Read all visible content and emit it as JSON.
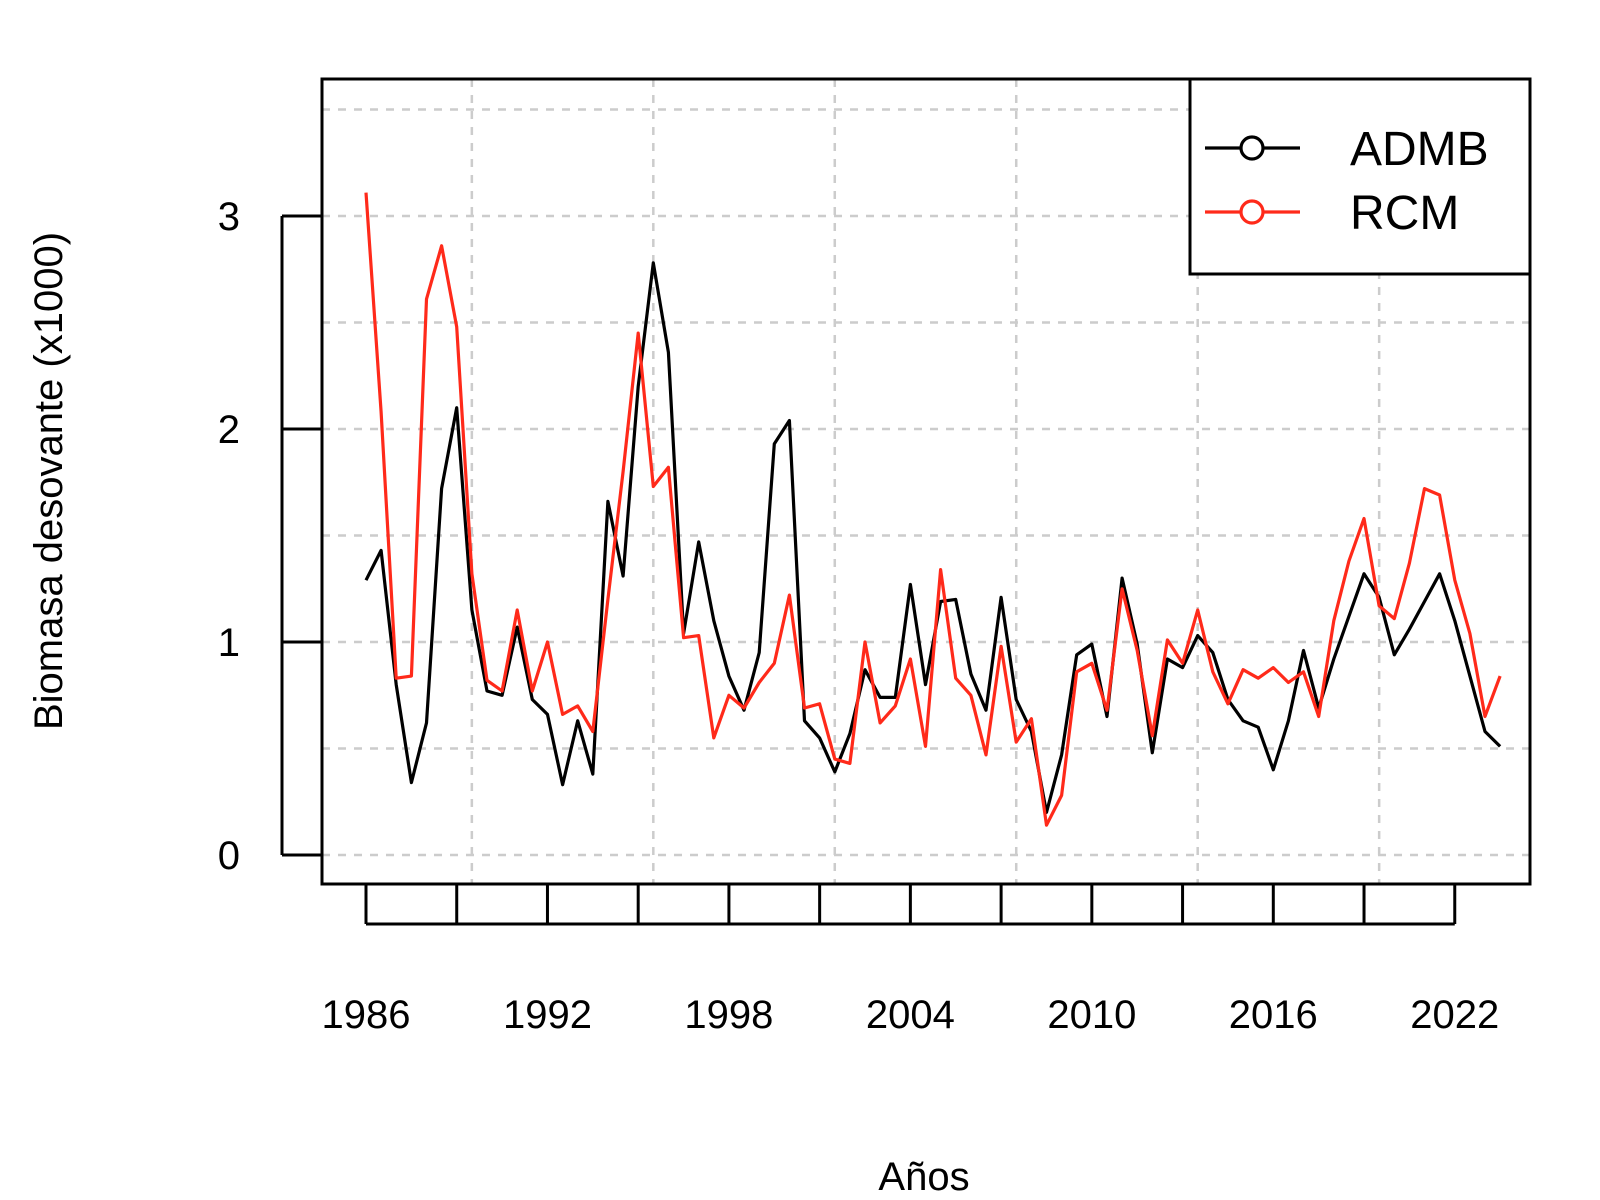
{
  "chart_data": {
    "type": "line",
    "xlabel": "Años",
    "ylabel": "Biomasa desovante (x1000)",
    "xlim": [
      1986,
      2023
    ],
    "ylim": [
      0,
      3.5
    ],
    "grid": true,
    "legend_position": "top-right",
    "x_ticks": [
      "1986",
      "1992",
      "1998",
      "2004",
      "2010",
      "2016",
      "2022"
    ],
    "y_ticks": [
      "0",
      "1",
      "2",
      "3"
    ],
    "x": [
      1986,
      1986.5,
      1987,
      1987.5,
      1988,
      1988.5,
      1989,
      1989.5,
      1990,
      1990.5,
      1991,
      1991.5,
      1992,
      1992.5,
      1993,
      1993.5,
      1994,
      1994.5,
      1995,
      1995.5,
      1996,
      1996.5,
      1997,
      1997.5,
      1998,
      1998.5,
      1999,
      1999.5,
      2000,
      2000.5,
      2001,
      2001.5,
      2002,
      2002.5,
      2003,
      2003.5,
      2004,
      2004.5,
      2005,
      2005.5,
      2006,
      2006.5,
      2007,
      2007.5,
      2008,
      2008.5,
      2009,
      2009.5,
      2010,
      2010.5,
      2011,
      2011.5,
      2012,
      2012.5,
      2013,
      2013.5,
      2014,
      2014.5,
      2015,
      2015.5,
      2016,
      2016.5,
      2017,
      2017.5,
      2018,
      2018.5,
      2019,
      2019.5,
      2020,
      2020.5,
      2021,
      2021.5,
      2022,
      2022.5,
      2023,
      2023.5
    ],
    "series": [
      {
        "name": "ADMB",
        "color": "#000000",
        "values": [
          1.29,
          1.43,
          0.8,
          0.34,
          0.62,
          1.72,
          2.1,
          1.15,
          0.77,
          0.75,
          1.07,
          0.73,
          0.66,
          0.33,
          0.63,
          0.38,
          1.66,
          1.31,
          2.2,
          2.78,
          2.36,
          1.04,
          1.47,
          1.1,
          0.84,
          0.68,
          0.95,
          1.93,
          2.04,
          0.63,
          0.55,
          0.39,
          0.57,
          0.87,
          0.74,
          0.74,
          1.27,
          0.8,
          1.19,
          1.2,
          0.85,
          0.68,
          1.21,
          0.73,
          0.58,
          0.2,
          0.47,
          0.94,
          0.99,
          0.65,
          1.3,
          0.99,
          0.48,
          0.92,
          0.88,
          1.03,
          0.95,
          0.73,
          0.63,
          0.6,
          0.4,
          0.63,
          0.96,
          0.69,
          0.92,
          1.12,
          1.32,
          1.21,
          0.94,
          1.06,
          1.19,
          1.32,
          1.1,
          0.84,
          0.58,
          0.51
        ]
      },
      {
        "name": "RCM",
        "color": "#ff2a1a",
        "values": [
          3.11,
          2.08,
          0.83,
          0.84,
          2.61,
          2.86,
          2.48,
          1.32,
          0.82,
          0.77,
          1.15,
          0.77,
          1.0,
          0.66,
          0.7,
          0.58,
          1.2,
          1.8,
          2.45,
          1.73,
          1.82,
          1.02,
          1.03,
          0.55,
          0.75,
          0.69,
          0.81,
          0.9,
          1.22,
          0.69,
          0.71,
          0.45,
          0.43,
          1.0,
          0.62,
          0.7,
          0.92,
          0.51,
          1.34,
          0.83,
          0.75,
          0.47,
          0.98,
          0.53,
          0.64,
          0.14,
          0.28,
          0.86,
          0.9,
          0.68,
          1.25,
          0.96,
          0.56,
          1.01,
          0.9,
          1.15,
          0.86,
          0.71,
          0.87,
          0.83,
          0.88,
          0.81,
          0.86,
          0.65,
          1.1,
          1.38,
          1.58,
          1.17,
          1.11,
          1.37,
          1.72,
          1.69,
          1.29,
          1.04,
          0.65,
          0.84
        ]
      }
    ]
  }
}
